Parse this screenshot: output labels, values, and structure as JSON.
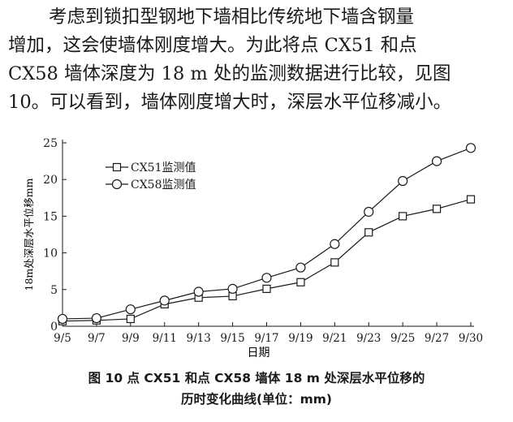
{
  "paragraph": {
    "line1": "考虑到锁扣型钢地下墙相比传统地下墙含钢量",
    "line2": "增加，这会使墙体刚度增大。为此将点 CX51 和点",
    "line3": "CX58 墙体深度为 18 m 处的监测数据进行比较，见图",
    "line4": "10。可以看到，墙体刚度增大时，深层水平位移减小。"
  },
  "caption": {
    "line1": "图 10  点 CX51 和点 CX58 墙体 18 m 处深层水平位移的",
    "line2": "历时变化曲线(单位：mm)"
  },
  "chart_data": {
    "type": "line",
    "categories": [
      "9/5",
      "9/7",
      "9/9",
      "9/11",
      "9/13",
      "9/15",
      "9/17",
      "9/19",
      "9/21",
      "9/23",
      "9/25",
      "9/27",
      "9/30"
    ],
    "series": [
      {
        "name": "CX51监测值",
        "marker": "square",
        "values": [
          0.7,
          0.8,
          1.0,
          3.0,
          3.9,
          4.1,
          5.1,
          6.0,
          8.7,
          12.8,
          15.0,
          16.0,
          17.3
        ]
      },
      {
        "name": "CX58监测值",
        "marker": "circle",
        "values": [
          1.0,
          1.1,
          2.3,
          3.5,
          4.7,
          5.1,
          6.6,
          8.0,
          11.2,
          15.6,
          19.8,
          22.5,
          24.3
        ]
      }
    ],
    "xlabel": "日期",
    "ylabel": "18m处深层水平位移mm",
    "ylim": [
      0,
      25
    ],
    "yticks": [
      0,
      5,
      10,
      15,
      20,
      25
    ],
    "grid": false,
    "legend_position": "top-left",
    "line_color": "#1a1a1a"
  }
}
